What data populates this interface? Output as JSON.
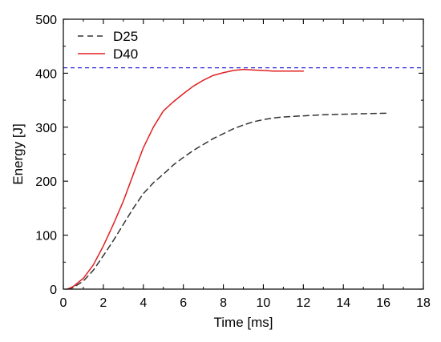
{
  "chart_data": {
    "type": "line",
    "xlabel": "Time [ms]",
    "ylabel": "Energy [J]",
    "xlim": [
      0,
      18
    ],
    "ylim": [
      0,
      500
    ],
    "x_ticks": [
      0,
      2,
      4,
      6,
      8,
      10,
      12,
      14,
      16,
      18
    ],
    "y_ticks": [
      0,
      100,
      200,
      300,
      400,
      500
    ],
    "grid": false,
    "legend_position": "top-left",
    "series": [
      {
        "name": "D25",
        "color": "#333333",
        "dash": "dashed",
        "x": [
          0.2,
          0.5,
          1.0,
          1.5,
          2.0,
          2.5,
          3.0,
          3.5,
          4.0,
          4.5,
          5.0,
          5.5,
          6.0,
          6.5,
          7.0,
          7.5,
          8.0,
          8.5,
          9.0,
          9.5,
          10.0,
          10.5,
          11.0,
          11.5,
          12.0,
          13.0,
          14.0,
          15.0,
          16.2
        ],
        "y": [
          0,
          3,
          15,
          35,
          62,
          90,
          120,
          150,
          177,
          197,
          213,
          230,
          244,
          257,
          268,
          279,
          288,
          297,
          304,
          310,
          314,
          317,
          319,
          320,
          321,
          323,
          324,
          325,
          326
        ]
      },
      {
        "name": "D40",
        "color": "#e02020",
        "dash": "solid",
        "x": [
          0.2,
          0.5,
          1.0,
          1.5,
          2.0,
          2.5,
          3.0,
          3.5,
          4.0,
          4.5,
          5.0,
          5.5,
          6.0,
          6.5,
          7.0,
          7.5,
          8.0,
          8.5,
          9.0,
          9.5,
          10.0,
          10.5,
          11.0,
          11.5,
          12.0
        ],
        "y": [
          0,
          5,
          20,
          45,
          80,
          120,
          163,
          213,
          262,
          300,
          330,
          347,
          362,
          376,
          387,
          396,
          401,
          405,
          407,
          406,
          405,
          404,
          404,
          404,
          404
        ]
      }
    ],
    "reference_lines": [
      {
        "orientation": "horizontal",
        "y": 410,
        "color": "#2b2bdd",
        "dash": "dashed"
      }
    ]
  }
}
